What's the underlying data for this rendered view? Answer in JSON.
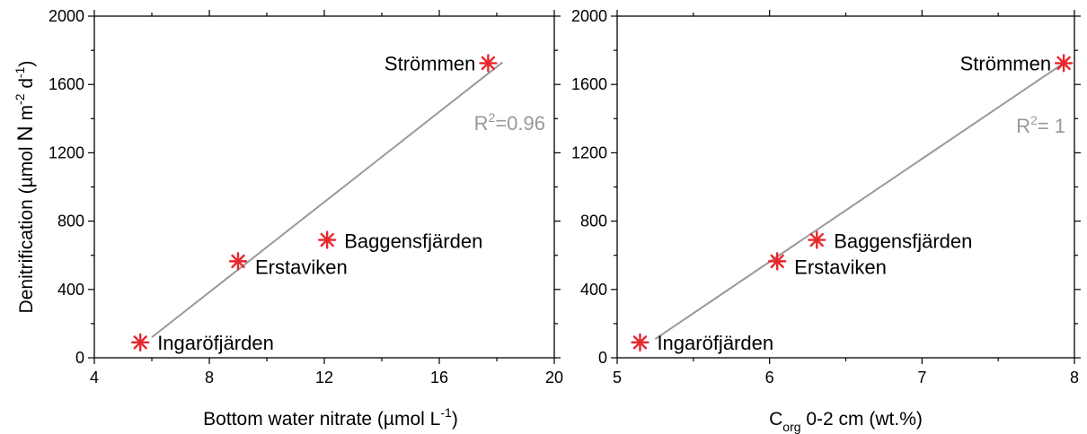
{
  "chart_data": [
    {
      "type": "scatter",
      "xlabel": "Bottom water nitrate (µmol L",
      "xlabel_sup": "-1",
      "xlabel_end": ")",
      "ylabel_parts": [
        "Denitrification (µmol ",
        "N",
        " m",
        "-2",
        " d",
        "-1",
        ")"
      ],
      "xlim": [
        4,
        20
      ],
      "ylim": [
        0,
        2000
      ],
      "xticks": [
        4,
        8,
        12,
        16,
        20
      ],
      "yticks": [
        0,
        400,
        800,
        1200,
        1600,
        2000
      ],
      "points": [
        {
          "label": "Ingaröfjärden",
          "x": 5.6,
          "y": 90
        },
        {
          "label": "Erstaviken",
          "x": 9.0,
          "y": 565
        },
        {
          "label": "Baggensfjärden",
          "x": 12.1,
          "y": 690
        },
        {
          "label": "Strömmen",
          "x": 17.7,
          "y": 1725
        }
      ],
      "fit": {
        "x1": 6.0,
        "y1": 120,
        "x2": 18.2,
        "y2": 1730,
        "r2_prefix": "R",
        "r2_sup": "2",
        "r2_suffix": "=0.96"
      }
    },
    {
      "type": "scatter",
      "xlabel": "C",
      "xlabel_sub": "org",
      "xlabel_end": " 0-2 cm (wt.%)",
      "xlim": [
        5,
        8
      ],
      "ylim": [
        0,
        2000
      ],
      "xticks": [
        5,
        6,
        7,
        8
      ],
      "yticks": [
        0,
        400,
        800,
        1200,
        1600,
        2000
      ],
      "points": [
        {
          "label": "Ingaröfjärden",
          "x": 5.15,
          "y": 90
        },
        {
          "label": "Erstaviken",
          "x": 6.05,
          "y": 565
        },
        {
          "label": "Baggensfjärden",
          "x": 6.31,
          "y": 690
        },
        {
          "label": "Strömmen",
          "x": 7.93,
          "y": 1725
        }
      ],
      "fit": {
        "x1": 5.25,
        "y1": 110,
        "x2": 7.93,
        "y2": 1725,
        "r2_prefix": "R",
        "r2_sup": "2",
        "r2_suffix": "= 1"
      }
    }
  ]
}
